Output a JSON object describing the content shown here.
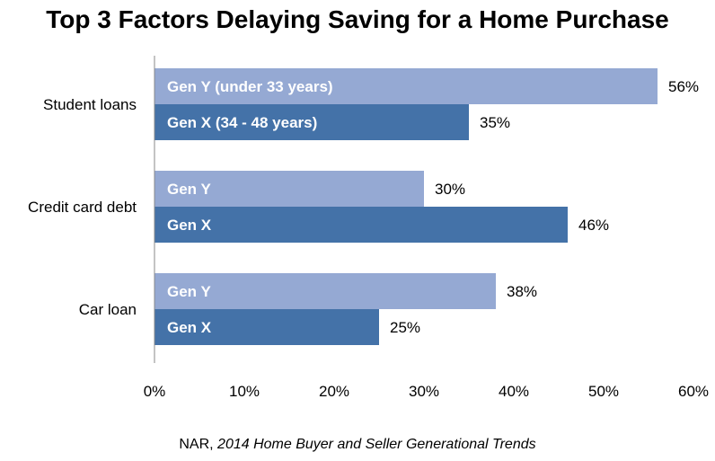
{
  "chart_data": {
    "type": "bar",
    "orientation": "horizontal",
    "title": "Top 3 Factors Delaying Saving for a Home Purchase",
    "categories": [
      "Student loans",
      "Credit card debt",
      "Car loan"
    ],
    "series": [
      {
        "name": "Gen Y",
        "bar_labels": [
          "Gen Y (under 33 years)",
          "Gen Y",
          "Gen Y"
        ],
        "values": [
          56,
          30,
          38
        ],
        "value_labels": [
          "56%",
          "30%",
          "38%"
        ],
        "color": "#95A9D3"
      },
      {
        "name": "Gen X",
        "bar_labels": [
          "Gen X (34 - 48 years)",
          "Gen X",
          "Gen X"
        ],
        "values": [
          35,
          46,
          25
        ],
        "value_labels": [
          "35%",
          "46%",
          "25%"
        ],
        "color": "#4472A8"
      }
    ],
    "xlim": [
      0,
      60
    ],
    "x_ticks": [
      "0%",
      "10%",
      "20%",
      "30%",
      "40%",
      "50%",
      "60%"
    ],
    "grid": false,
    "legend": "none"
  },
  "source": {
    "prefix": "NAR, ",
    "title": "2014 Home Buyer and Seller Generational  Trends"
  }
}
